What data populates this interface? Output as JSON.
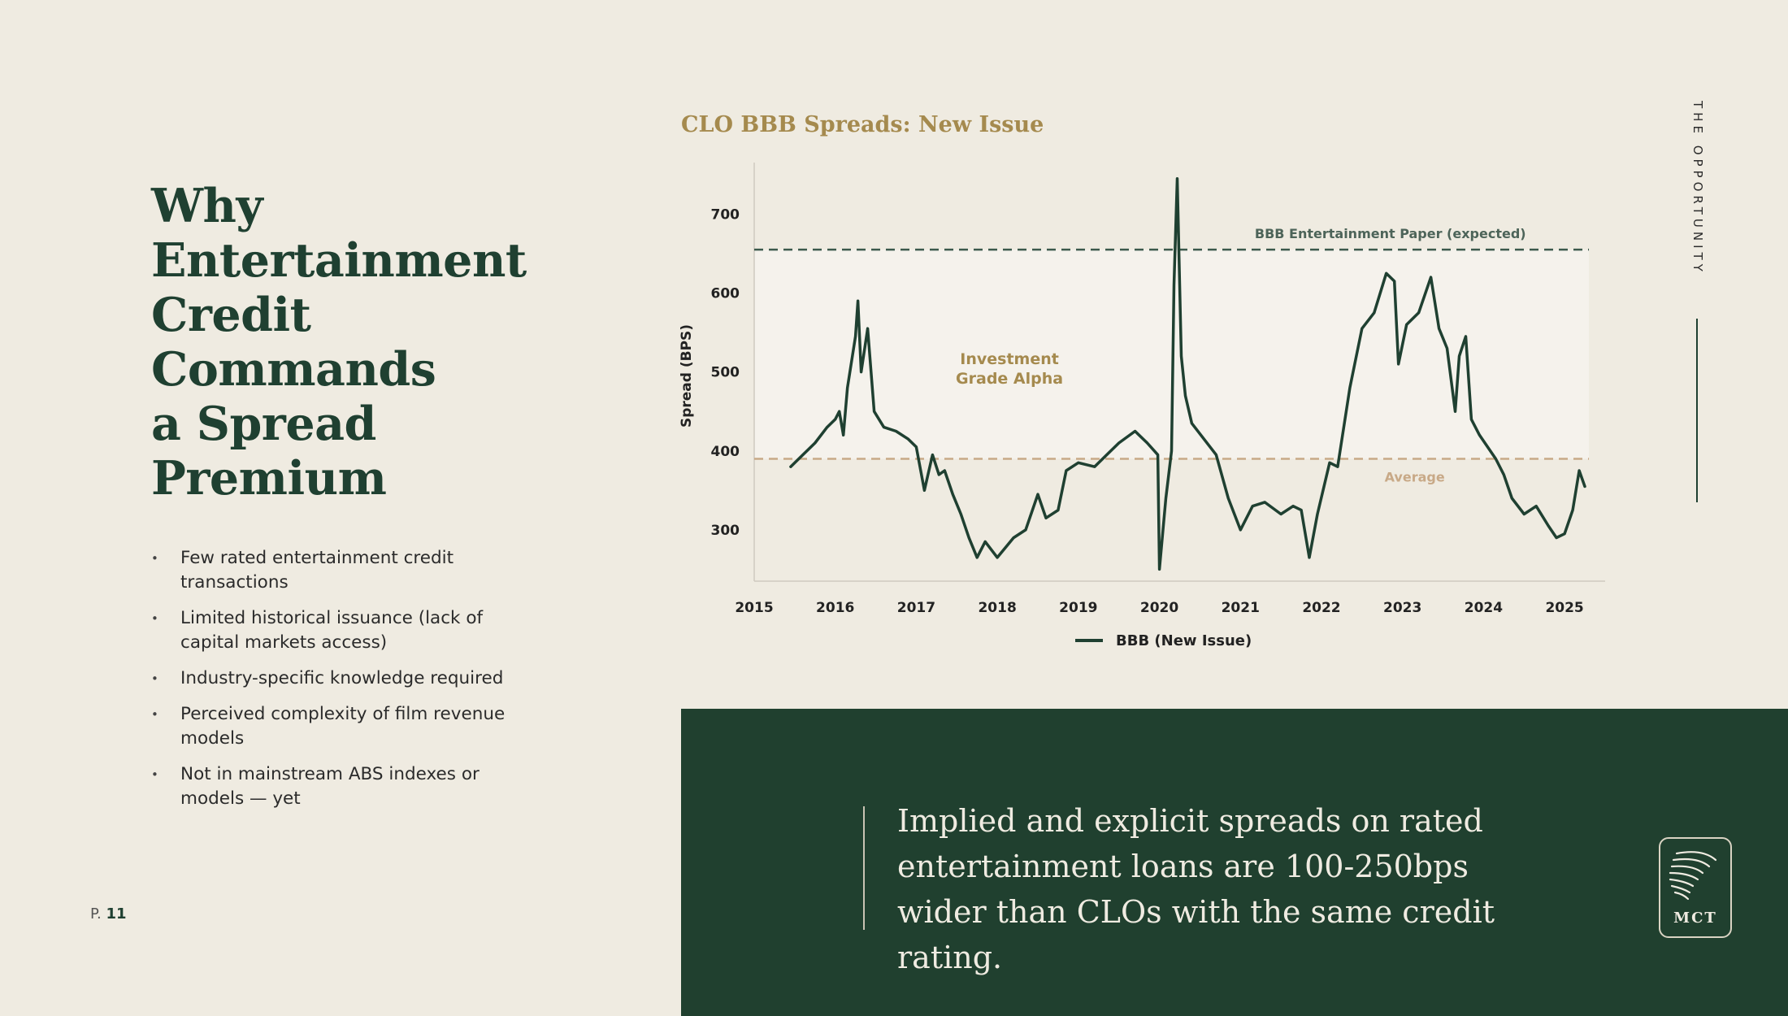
{
  "headline": [
    "Why",
    "Entertainment",
    "Credit",
    "Commands",
    "a Spread",
    "Premium"
  ],
  "bullets": [
    "Few rated entertainment credit transactions",
    "Limited historical issuance (lack of capital markets access)",
    "Industry-specific knowledge required",
    "Perceived complexity of film revenue models",
    "Not in mainstream ABS indexes or models — yet"
  ],
  "page": {
    "prefix": "P.",
    "number": "11"
  },
  "section_label": "THE OPPORTUNITY",
  "quote": "Implied and explicit spreads on rated entertainment loans are 100-250bps wider than CLOs with the same credit rating.",
  "logo_text": "MCT",
  "colors": {
    "background": "#efebe1",
    "dark_green": "#20402f",
    "gold": "#a58a4e",
    "line": "#1f4031",
    "average": "#c8a987"
  },
  "chart_data": {
    "type": "line",
    "title": "CLO BBB Spreads: New Issue",
    "ylabel": "Spread (BPS)",
    "xlabel": "",
    "xlim": [
      2015,
      2025.4
    ],
    "ylim": [
      235,
      755
    ],
    "x_ticks": [
      "2015",
      "2016",
      "2017",
      "2018",
      "2019",
      "2020",
      "2021",
      "2022",
      "2023",
      "2024",
      "2025"
    ],
    "y_ticks": [
      "300",
      "400",
      "500",
      "600",
      "700"
    ],
    "grid": false,
    "legend_position": "bottom",
    "reference_lines": [
      {
        "label": "BBB Entertainment Paper (expected)",
        "value": 655,
        "style": "dashed",
        "color": "#3c5a4c"
      },
      {
        "label": "Average",
        "value": 390,
        "style": "dashed",
        "color": "#c8a987"
      }
    ],
    "shaded_band": {
      "label": "Investment Grade Alpha",
      "from": 390,
      "to": 655
    },
    "series": [
      {
        "name": "BBB (New Issue)",
        "color": "#1f4031",
        "points": [
          [
            2015.45,
            380
          ],
          [
            2015.6,
            395
          ],
          [
            2015.75,
            410
          ],
          [
            2015.9,
            430
          ],
          [
            2016.0,
            440
          ],
          [
            2016.05,
            450
          ],
          [
            2016.1,
            420
          ],
          [
            2016.15,
            480
          ],
          [
            2016.25,
            545
          ],
          [
            2016.28,
            590
          ],
          [
            2016.32,
            500
          ],
          [
            2016.4,
            555
          ],
          [
            2016.48,
            450
          ],
          [
            2016.6,
            430
          ],
          [
            2016.75,
            425
          ],
          [
            2016.9,
            415
          ],
          [
            2017.0,
            405
          ],
          [
            2017.1,
            350
          ],
          [
            2017.2,
            395
          ],
          [
            2017.28,
            370
          ],
          [
            2017.35,
            375
          ],
          [
            2017.45,
            345
          ],
          [
            2017.55,
            320
          ],
          [
            2017.65,
            290
          ],
          [
            2017.75,
            265
          ],
          [
            2017.85,
            285
          ],
          [
            2018.0,
            265
          ],
          [
            2018.2,
            290
          ],
          [
            2018.35,
            300
          ],
          [
            2018.5,
            345
          ],
          [
            2018.6,
            315
          ],
          [
            2018.75,
            325
          ],
          [
            2018.85,
            375
          ],
          [
            2019.0,
            385
          ],
          [
            2019.2,
            380
          ],
          [
            2019.35,
            395
          ],
          [
            2019.5,
            410
          ],
          [
            2019.7,
            425
          ],
          [
            2019.85,
            410
          ],
          [
            2019.98,
            395
          ],
          [
            2020.0,
            250
          ],
          [
            2020.08,
            340
          ],
          [
            2020.15,
            400
          ],
          [
            2020.18,
            610
          ],
          [
            2020.22,
            745
          ],
          [
            2020.27,
            520
          ],
          [
            2020.32,
            470
          ],
          [
            2020.4,
            435
          ],
          [
            2020.55,
            415
          ],
          [
            2020.7,
            395
          ],
          [
            2020.85,
            340
          ],
          [
            2021.0,
            300
          ],
          [
            2021.15,
            330
          ],
          [
            2021.3,
            335
          ],
          [
            2021.5,
            320
          ],
          [
            2021.65,
            330
          ],
          [
            2021.75,
            325
          ],
          [
            2021.85,
            265
          ],
          [
            2021.95,
            320
          ],
          [
            2022.1,
            385
          ],
          [
            2022.2,
            380
          ],
          [
            2022.35,
            480
          ],
          [
            2022.5,
            555
          ],
          [
            2022.65,
            575
          ],
          [
            2022.8,
            625
          ],
          [
            2022.9,
            615
          ],
          [
            2022.95,
            510
          ],
          [
            2023.05,
            560
          ],
          [
            2023.2,
            575
          ],
          [
            2023.35,
            620
          ],
          [
            2023.45,
            555
          ],
          [
            2023.55,
            530
          ],
          [
            2023.65,
            450
          ],
          [
            2023.7,
            520
          ],
          [
            2023.78,
            545
          ],
          [
            2023.85,
            440
          ],
          [
            2023.95,
            420
          ],
          [
            2024.05,
            405
          ],
          [
            2024.15,
            390
          ],
          [
            2024.25,
            370
          ],
          [
            2024.35,
            340
          ],
          [
            2024.5,
            320
          ],
          [
            2024.65,
            330
          ],
          [
            2024.8,
            305
          ],
          [
            2024.9,
            290
          ],
          [
            2025.0,
            295
          ],
          [
            2025.1,
            325
          ],
          [
            2025.18,
            375
          ],
          [
            2025.25,
            355
          ]
        ]
      }
    ]
  }
}
